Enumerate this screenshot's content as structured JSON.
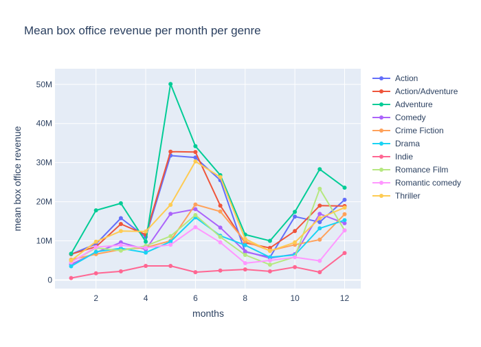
{
  "chart_data": {
    "type": "line",
    "title": "Mean box office revenue per month per genre",
    "xlabel": "months",
    "ylabel": "mean box office revenue",
    "x": [
      1,
      2,
      3,
      4,
      5,
      6,
      7,
      8,
      9,
      10,
      11,
      12
    ],
    "xlim": [
      0.35,
      12.65
    ],
    "ylim": [
      -2200000,
      54000000
    ],
    "xticks": [
      2,
      4,
      6,
      8,
      10,
      12
    ],
    "yticks": [
      0,
      10000000,
      20000000,
      30000000,
      40000000,
      50000000
    ],
    "ytick_labels": [
      "0",
      "10M",
      "20M",
      "30M",
      "40M",
      "50M"
    ],
    "grid": true,
    "legend_position": "right",
    "plot_background": "#E5ECF6",
    "series": [
      {
        "name": "Action",
        "color": "#636EFA",
        "values": [
          6600000,
          9200000,
          15800000,
          11000000,
          31800000,
          31300000,
          25500000,
          7200000,
          5800000,
          16200000,
          14800000,
          20500000
        ]
      },
      {
        "name": "Action/Adventure",
        "color": "#EF553B",
        "values": [
          6600000,
          8500000,
          14300000,
          11600000,
          32800000,
          32700000,
          19000000,
          9500000,
          8200000,
          12500000,
          19000000,
          18900000
        ]
      },
      {
        "name": "Adventure",
        "color": "#00CC96",
        "values": [
          6700000,
          17800000,
          19600000,
          9800000,
          50100000,
          34200000,
          26800000,
          11600000,
          10000000,
          17400000,
          28300000,
          23600000
        ]
      },
      {
        "name": "Comedy",
        "color": "#AB63FA",
        "values": [
          4000000,
          7000000,
          9600000,
          7800000,
          16900000,
          18100000,
          13400000,
          7300000,
          5600000,
          6600000,
          16900000,
          14500000
        ]
      },
      {
        "name": "Crime Fiction",
        "color": "#FFA15A",
        "values": [
          5200000,
          6600000,
          7800000,
          8300000,
          10000000,
          19300000,
          17500000,
          9900000,
          7500000,
          9000000,
          10300000,
          16800000
        ]
      },
      {
        "name": "Drama",
        "color": "#19D3F3",
        "values": [
          3500000,
          7200000,
          8100000,
          7000000,
          9800000,
          16000000,
          11300000,
          8900000,
          5800000,
          6400000,
          13200000,
          15300000
        ]
      },
      {
        "name": "Indie",
        "color": "#FF6692",
        "values": [
          500000,
          1700000,
          2200000,
          3600000,
          3600000,
          2000000,
          2400000,
          2700000,
          2200000,
          3300000,
          2000000,
          6900000
        ]
      },
      {
        "name": "Romance Film",
        "color": "#B6E880",
        "values": [
          4600000,
          8200000,
          7500000,
          8700000,
          11200000,
          16600000,
          11000000,
          6400000,
          3900000,
          5900000,
          23300000,
          12700000
        ]
      },
      {
        "name": "Romantic comedy",
        "color": "#FF97FF",
        "values": [
          4500000,
          8400000,
          8900000,
          8200000,
          9000000,
          13500000,
          9600000,
          4300000,
          5000000,
          5800000,
          4900000,
          12700000
        ]
      },
      {
        "name": "Thriller",
        "color": "#FECB52",
        "values": [
          5000000,
          9800000,
          12500000,
          12400000,
          19200000,
          30300000,
          26300000,
          10500000,
          7400000,
          9600000,
          15800000,
          18500000
        ]
      }
    ]
  }
}
